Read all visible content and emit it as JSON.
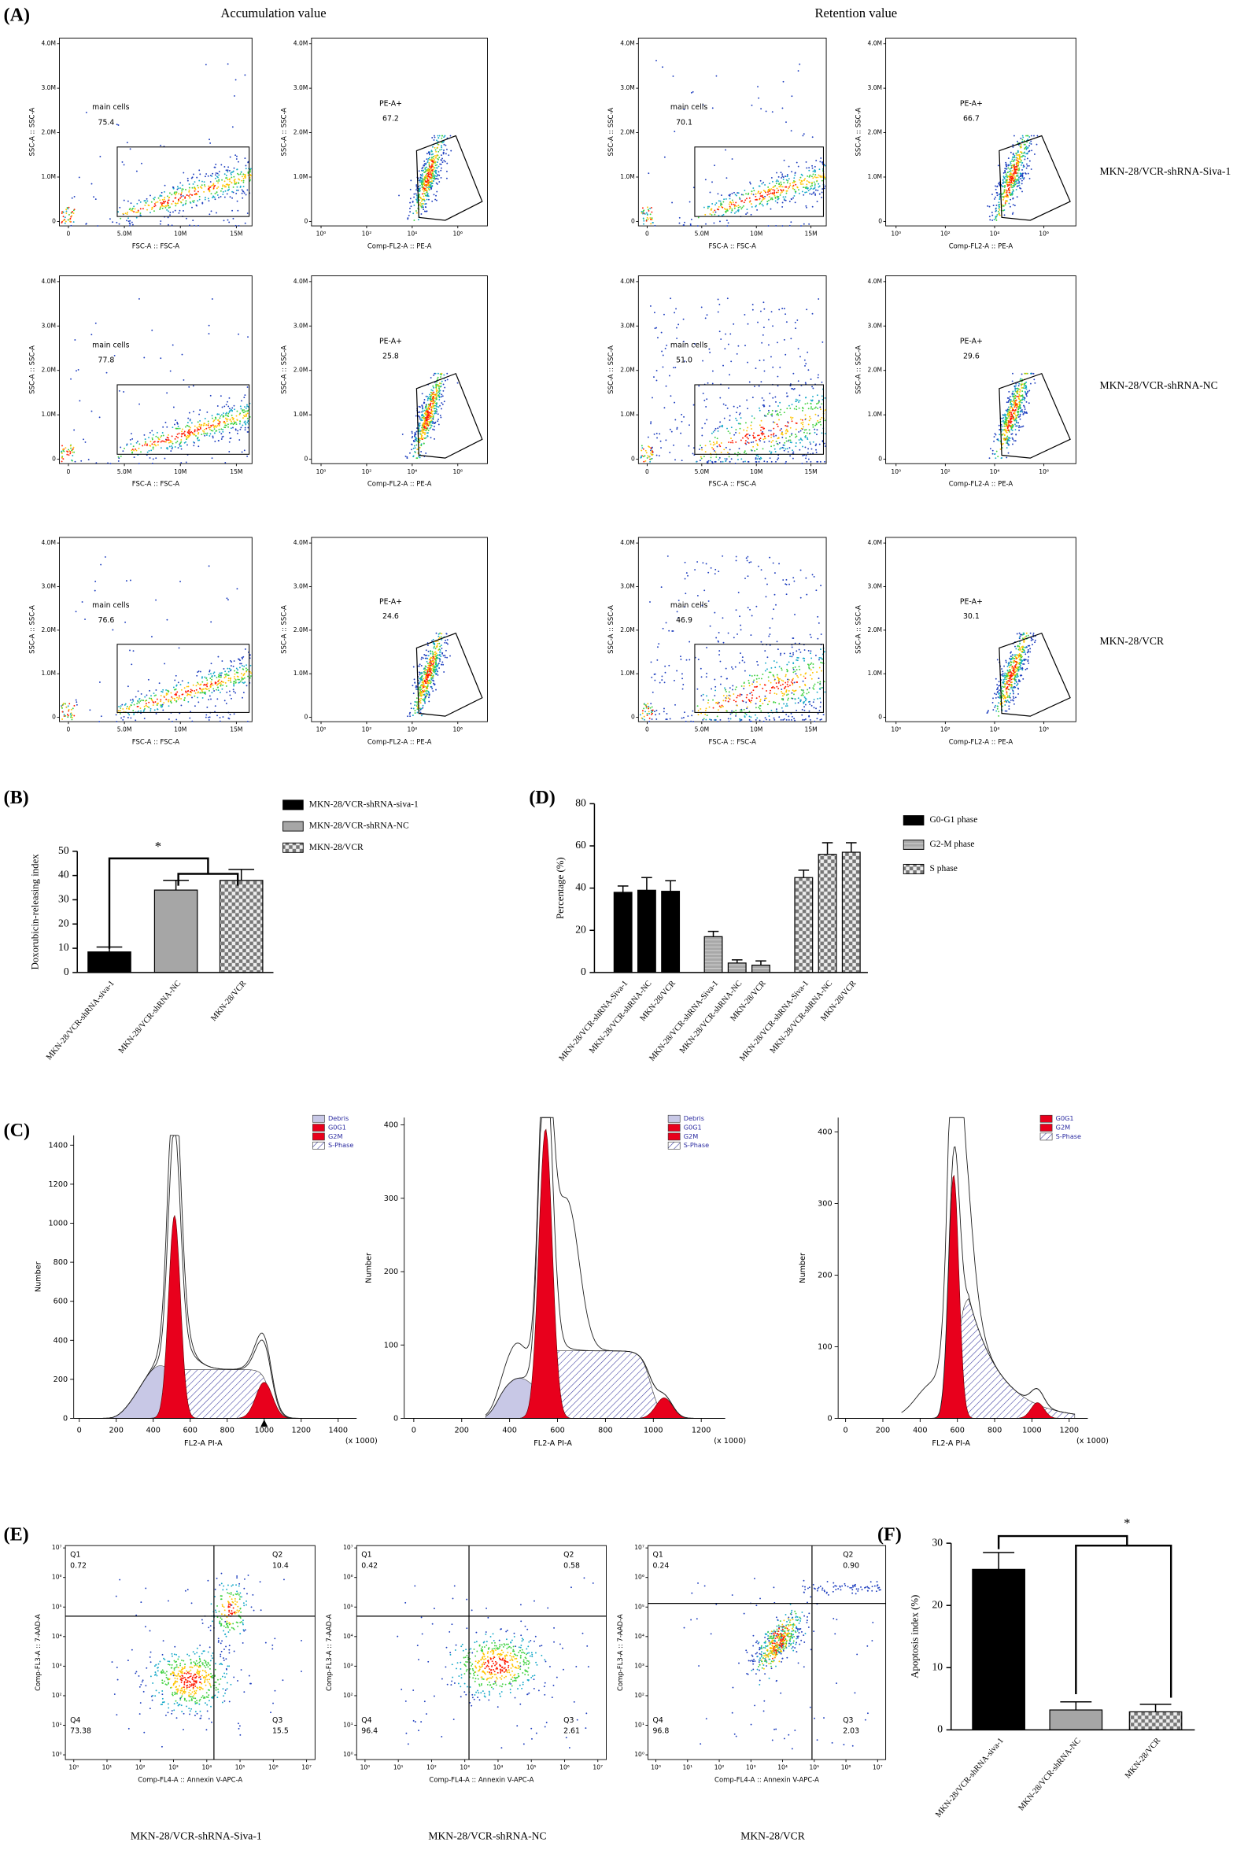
{
  "panel_labels": [
    "(A)",
    "(B)",
    "(C)",
    "(D)",
    "(E)",
    "(F)"
  ],
  "flow_a": {
    "column_headers": [
      "Accumulation value",
      "Retention value"
    ],
    "row_labels": [
      "MKN-28/VCR-shRNA-Siva-1",
      "MKN-28/VCR-shRNA-NC",
      "MKN-28/VCR"
    ],
    "scatter_axes": {
      "xlabel": "FSC-A :: FSC-A",
      "ylabel": "SSC-A :: SSC-A",
      "gate": "main cells",
      "xlim": [
        -800000,
        16400000
      ],
      "ylim": [
        -100000,
        4130000
      ],
      "xticks": [
        0,
        {
          "value": 5000000,
          "label": "5.0M"
        },
        {
          "value": 10000000,
          "label": "10M"
        },
        {
          "value": 15000000,
          "label": "15M"
        }
      ],
      "yticks": [
        0,
        {
          "value": 1000000,
          "label": "1.0M"
        },
        {
          "value": 2000000,
          "label": "2.0M"
        },
        {
          "value": 3000000,
          "label": "3.0M"
        },
        {
          "value": 4000000,
          "label": "4.0M"
        }
      ]
    },
    "pe_axes": {
      "xlabel": "Comp-FL2-A :: PE-A",
      "ylabel": "SSC-A :: SSC-A",
      "gate": "PE-A+",
      "log_x": true,
      "xlim": [
        0.38,
        20000000
      ],
      "ylim": [
        -100000,
        4130000
      ],
      "xticks": [
        {
          "value": 1,
          "label": "10⁰"
        },
        {
          "value": 100,
          "label": "10²"
        },
        {
          "value": 10000,
          "label": "10⁴"
        },
        {
          "value": 1000000,
          "label": "10⁶"
        }
      ],
      "yticks": [
        0,
        {
          "value": 1000000,
          "label": "1.0M"
        },
        {
          "value": 2000000,
          "label": "2.0M"
        },
        {
          "value": 3000000,
          "label": "3.0M"
        },
        {
          "value": 4000000,
          "label": "4.0M"
        }
      ]
    },
    "gate_values": [
      [
        "75.4",
        "67.2",
        "70.1",
        "66.7"
      ],
      [
        "77.8",
        "25.8",
        "51.0",
        "29.6"
      ],
      [
        "76.6",
        "24.6",
        "46.9",
        "30.1"
      ]
    ]
  },
  "hist_c": {
    "xlabel": "FL2-A PI-A",
    "ylabel": "Number",
    "x_unit": "(x 1000)",
    "panels": [
      {
        "xlim": [
          -30,
          1500
        ],
        "ylim": [
          0,
          1450
        ],
        "xticks": [
          0,
          200,
          400,
          600,
          800,
          1000,
          1200,
          1400
        ],
        "yticks": [
          0,
          200,
          400,
          600,
          800,
          1000,
          1200,
          1400
        ],
        "legend": [
          {
            "name": "Debris",
            "color": "#c8c8e6"
          },
          {
            "name": "G0G1",
            "color": "#e8001c"
          },
          {
            "name": "G2M",
            "color": "#e8001c"
          },
          {
            "name": "S-Phase",
            "color": "#2a2a8a",
            "pattern": "hatched"
          }
        ]
      },
      {
        "xlim": [
          -40,
          1300
        ],
        "ylim": [
          0,
          410
        ],
        "xticks": [
          0,
          200,
          400,
          600,
          800,
          1000,
          1200
        ],
        "yticks": [
          0,
          100,
          200,
          300,
          400
        ],
        "legend": [
          {
            "name": "Debris",
            "color": "#c8c8e6"
          },
          {
            "name": "G0G1",
            "color": "#e8001c"
          },
          {
            "name": "G2M",
            "color": "#e8001c"
          },
          {
            "name": "S-Phase",
            "color": "#2a2a8a",
            "pattern": "hatched"
          }
        ]
      },
      {
        "xlim": [
          -40,
          1300
        ],
        "ylim": [
          0,
          420
        ],
        "xticks": [
          0,
          200,
          400,
          600,
          800,
          1000,
          1200
        ],
        "yticks": [
          0,
          100,
          200,
          300,
          400
        ],
        "legend": [
          {
            "name": "G0G1",
            "color": "#e8001c"
          },
          {
            "name": "G2M",
            "color": "#e8001c"
          },
          {
            "name": "S-Phase",
            "color": "#2a2a8a",
            "pattern": "hatched"
          }
        ]
      }
    ]
  },
  "flow_e": {
    "axes": {
      "xlabel": "Comp-FL4-A :: Annexin V-APC-A",
      "ylabel": "Comp-FL3-A :: 7-AAD-A",
      "log_x": true,
      "log_y": true,
      "xlim": [
        0.56,
        18000000
      ],
      "ylim": [
        0.69,
        12000000
      ],
      "xticks": [
        {
          "value": 1,
          "label": "10⁰"
        },
        {
          "value": 10,
          "label": "10¹"
        },
        {
          "value": 100,
          "label": "10²"
        },
        {
          "value": 1000,
          "label": "10³"
        },
        {
          "value": 10000,
          "label": "10⁴"
        },
        {
          "value": 100000,
          "label": "10⁵"
        },
        {
          "value": 1000000,
          "label": "10⁶"
        },
        {
          "value": 10000000,
          "label": "10⁷"
        }
      ],
      "yticks": [
        {
          "value": 1,
          "label": "10⁰"
        },
        {
          "value": 10,
          "label": "10¹"
        },
        {
          "value": 100,
          "label": "10²"
        },
        {
          "value": 1000,
          "label": "10³"
        },
        {
          "value": 10000,
          "label": "10⁴"
        },
        {
          "value": 100000,
          "label": "10⁵"
        },
        {
          "value": 1000000,
          "label": "10⁶"
        },
        {
          "value": 10000000,
          "label": "10⁷"
        }
      ]
    },
    "quadrants": [
      "Q1",
      "Q2",
      "Q3",
      "Q4"
    ],
    "plots": [
      {
        "name": "MKN-28/VCR-shRNA-Siva-1",
        "values": [
          "0.72",
          "10.4",
          "15.5",
          "73.38"
        ]
      },
      {
        "name": "MKN-28/VCR-shRNA-NC",
        "values": [
          "0.42",
          "0.58",
          "2.61",
          "96.4"
        ]
      },
      {
        "name": "MKN-28/VCR",
        "values": [
          "0.24",
          "0.90",
          "2.03",
          "96.8"
        ]
      }
    ]
  },
  "chart_data": [
    {
      "type": "bar",
      "categories": [
        "MKN-28/VCR-shRNA-siva-1",
        "MKN-28/VCR-shRNA-NC",
        "MKN-28/VCR"
      ],
      "values": [
        8.5,
        34,
        38
      ],
      "errors": [
        2,
        4,
        4.5
      ],
      "fills": [
        "solid",
        "gray",
        "checkered"
      ],
      "ylabel": "Doxorubicin-releasing index",
      "ylim": [
        0,
        50
      ],
      "yticks": [
        0,
        10,
        20,
        30,
        40,
        50
      ],
      "legend": true,
      "annotation": "*"
    },
    {
      "type": "grouped_bar",
      "categories": [
        "MKN-28/VCR-shRNA-Siva-1",
        "MKN-28/VCR-shRNA-NC",
        "MKN-28/VCR",
        "MKN-28/VCR-shRNA-Siva-1",
        "MKN-28/VCR-shRNA-NC",
        "MKN-28/VCR",
        "MKN-28/VCR-shRNA-Siva-1",
        "MKN-28/VCR-shRNA-NC",
        "MKN-28/VCR"
      ],
      "series": [
        {
          "name": "G0-G1 phase",
          "fill": "solid",
          "values": [
            38,
            39,
            38.5,
            null,
            null,
            null,
            null,
            null,
            null
          ],
          "errors": [
            3,
            6,
            5,
            null,
            null,
            null,
            null,
            null,
            null
          ]
        },
        {
          "name": "G2-M phase",
          "fill": "striped",
          "values": [
            null,
            null,
            null,
            17,
            4.5,
            3.5,
            null,
            null,
            null
          ],
          "errors": [
            null,
            null,
            null,
            2.5,
            1.5,
            2,
            null,
            null,
            null
          ]
        },
        {
          "name": "S phase",
          "fill": "checkered",
          "values": [
            null,
            null,
            null,
            null,
            null,
            null,
            45,
            56,
            57
          ],
          "errors": [
            null,
            null,
            null,
            null,
            null,
            null,
            3.5,
            5.5,
            4.5
          ]
        }
      ],
      "ylabel": "Percentage (%)",
      "ylim": [
        0,
        80
      ],
      "yticks": [
        0,
        20,
        40,
        60,
        80
      ],
      "legend": true
    },
    {
      "type": "bar",
      "categories": [
        "MKN-28/VCR-shRNA-siva-1",
        "MKN-28/VCR-shRNA-NC",
        "MKN-28/VCR"
      ],
      "values": [
        25.8,
        3.2,
        2.9
      ],
      "errors": [
        2.7,
        1.3,
        1.2
      ],
      "fills": [
        "solid",
        "gray",
        "checkered"
      ],
      "ylabel": "Apoptosis index (%)",
      "ylim": [
        0,
        30
      ],
      "yticks": [
        0,
        10,
        20,
        30
      ],
      "annotation": "*"
    }
  ]
}
